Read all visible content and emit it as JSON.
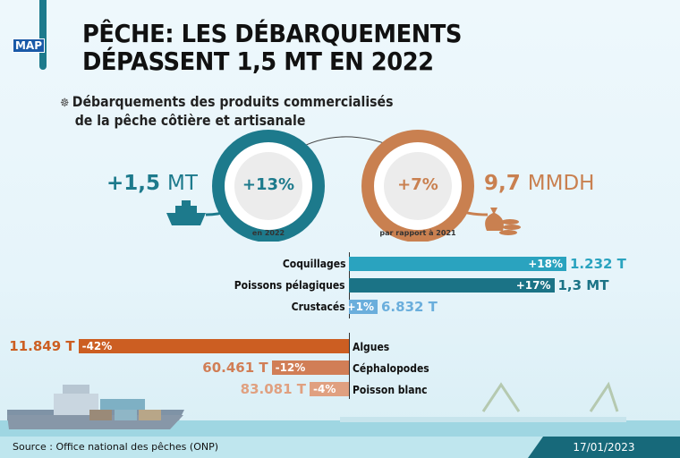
{
  "header": {
    "logo": "MAP",
    "title_line1": "PÊCHE: LES DÉBARQUEMENTS",
    "title_line2": "DÉPASSENT 1,5 MT EN 2022"
  },
  "subtitle": {
    "icon": "ship-wheel-icon",
    "line1": "Débarquements des produits commercialisés",
    "line2": "de la pêche côtière et artisanale"
  },
  "highlights": {
    "volume": {
      "value": "+1,5",
      "unit": "MT",
      "growth": "+13%",
      "caption": "en 2022",
      "icon": "ship-icon",
      "color": "#1d7a8c"
    },
    "value": {
      "value": "9,7",
      "unit": "MMDH",
      "growth": "+7%",
      "caption": "par rapport à 2021",
      "icon": "money-bag-icon",
      "color": "#c98050"
    }
  },
  "chart_data": {
    "type": "bar",
    "orientation": "horizontal-diverging",
    "categories": [
      "Coquillages",
      "Poissons pélagiques",
      "Crustacés",
      "Algues",
      "Céphalopodes",
      "Poisson blanc"
    ],
    "values": [
      18,
      17,
      1,
      -42,
      -12,
      -4
    ],
    "value_labels": [
      "+18%",
      "+17%",
      "+1%",
      "-42%",
      "-12%",
      "-4%"
    ],
    "quantities": [
      "1.232 T",
      "1,3 MT",
      "6.832 T",
      "11.849 T",
      "60.461 T",
      "83.081 T"
    ],
    "colors": [
      "#2aa3bf",
      "#1b7386",
      "#6aaedc",
      "#cc5e22",
      "#d17e56",
      "#e0a080"
    ]
  },
  "footer": {
    "source": "Source : Office national des pêches (ONP)",
    "date": "17/01/2023"
  }
}
